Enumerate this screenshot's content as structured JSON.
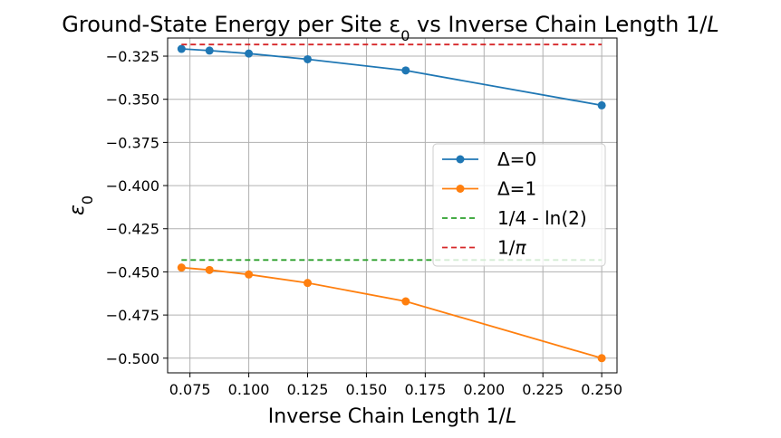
{
  "chart_data": {
    "type": "line",
    "title": "Ground-State Energy per Site ε",
    "title_sub": "0",
    "title_rest": " vs Inverse Chain Length 1/",
    "title_italic": "L",
    "xlabel": "Inverse Chain Length 1/",
    "xlabel_italic": "L",
    "ylabel": "ε",
    "ylabel_sub": "0",
    "xlim": [
      0.0655,
      0.2565
    ],
    "ylim": [
      -0.5085,
      -0.3145
    ],
    "xticks": [
      0.075,
      0.1,
      0.125,
      0.15,
      0.175,
      0.2,
      0.225,
      0.25
    ],
    "xtick_labels": [
      "0.075",
      "0.100",
      "0.125",
      "0.150",
      "0.175",
      "0.200",
      "0.225",
      "0.250"
    ],
    "yticks": [
      -0.325,
      -0.35,
      -0.375,
      -0.4,
      -0.425,
      -0.45,
      -0.475,
      -0.5
    ],
    "ytick_labels": [
      "−0.325",
      "−0.350",
      "−0.375",
      "−0.400",
      "−0.425",
      "−0.450",
      "−0.475",
      "−0.500"
    ],
    "grid": true,
    "legend_position": "center-right",
    "series": [
      {
        "name": "Δ=0",
        "color": "#1f77b4",
        "style": "solid",
        "marker": "circle",
        "x": [
          0.0714,
          0.0833,
          0.1,
          0.125,
          0.1667,
          0.25
        ],
        "y": [
          -0.3208,
          -0.3218,
          -0.3235,
          -0.3268,
          -0.3333,
          -0.3535
        ]
      },
      {
        "name": "Δ=1",
        "color": "#ff7f0e",
        "style": "solid",
        "marker": "circle",
        "x": [
          0.0714,
          0.0833,
          0.1,
          0.125,
          0.1667,
          0.25
        ],
        "y": [
          -0.4475,
          -0.4489,
          -0.4515,
          -0.4564,
          -0.4671,
          -0.5
        ]
      },
      {
        "name": "1/4 - ln(2)",
        "color": "#2ca02c",
        "style": "dashed",
        "marker": "none",
        "x": [
          0.0714,
          0.25
        ],
        "y": [
          -0.4431,
          -0.4431
        ]
      },
      {
        "name": "1/π",
        "name_parts": [
          "1/",
          "π"
        ],
        "color": "#d62728",
        "style": "dashed",
        "marker": "none",
        "x": [
          0.0714,
          0.25
        ],
        "y": [
          -0.3183,
          -0.3183
        ]
      }
    ]
  }
}
